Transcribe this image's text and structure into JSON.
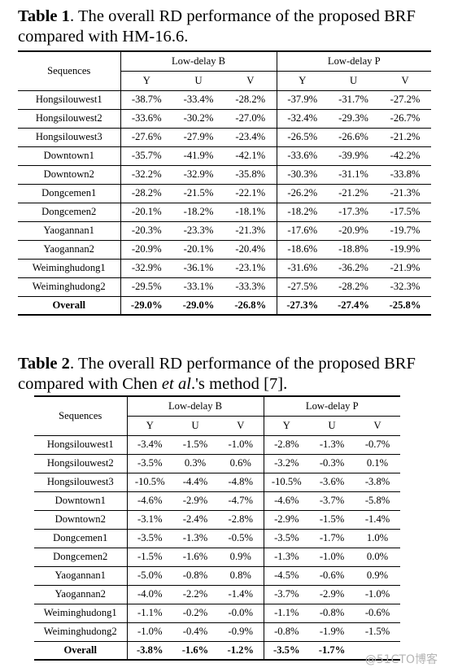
{
  "tables": [
    {
      "label": "Table 1",
      "caption_parts": [
        ". The overall RD performance of the proposed BRF compared with HM-16.6."
      ],
      "header": {
        "sequences": "Sequences",
        "group1": "Low-delay B",
        "group2": "Low-delay P",
        "sub": [
          "Y",
          "U",
          "V",
          "Y",
          "U",
          "V"
        ]
      },
      "rows": [
        {
          "name": "Hongsilouwest1",
          "values": [
            "-38.7%",
            "-33.4%",
            "-28.2%",
            "-37.9%",
            "-31.7%",
            "-27.2%"
          ]
        },
        {
          "name": "Hongsilouwest2",
          "values": [
            "-33.6%",
            "-30.2%",
            "-27.0%",
            "-32.4%",
            "-29.3%",
            "-26.7%"
          ]
        },
        {
          "name": "Hongsilouwest3",
          "values": [
            "-27.6%",
            "-27.9%",
            "-23.4%",
            "-26.5%",
            "-26.6%",
            "-21.2%"
          ]
        },
        {
          "name": "Downtown1",
          "values": [
            "-35.7%",
            "-41.9%",
            "-42.1%",
            "-33.6%",
            "-39.9%",
            "-42.2%"
          ]
        },
        {
          "name": "Downtown2",
          "values": [
            "-32.2%",
            "-32.9%",
            "-35.8%",
            "-30.3%",
            "-31.1%",
            "-33.8%"
          ]
        },
        {
          "name": "Dongcemen1",
          "values": [
            "-28.2%",
            "-21.5%",
            "-22.1%",
            "-26.2%",
            "-21.2%",
            "-21.3%"
          ]
        },
        {
          "name": "Dongcemen2",
          "values": [
            "-20.1%",
            "-18.2%",
            "-18.1%",
            "-18.2%",
            "-17.3%",
            "-17.5%"
          ]
        },
        {
          "name": "Yaogannan1",
          "values": [
            "-20.3%",
            "-23.3%",
            "-21.3%",
            "-17.6%",
            "-20.9%",
            "-19.7%"
          ]
        },
        {
          "name": "Yaogannan2",
          "values": [
            "-20.9%",
            "-20.1%",
            "-20.4%",
            "-18.6%",
            "-18.8%",
            "-19.9%"
          ]
        },
        {
          "name": "Weiminghudong1",
          "values": [
            "-32.9%",
            "-36.1%",
            "-23.1%",
            "-31.6%",
            "-36.2%",
            "-21.9%"
          ]
        },
        {
          "name": "Weiminghudong2",
          "values": [
            "-29.5%",
            "-33.1%",
            "-33.3%",
            "-27.5%",
            "-28.2%",
            "-32.3%"
          ]
        }
      ],
      "overall": {
        "name": "Overall",
        "values": [
          "-29.0%",
          "-29.0%",
          "-26.8%",
          "-27.3%",
          "-27.4%",
          "-25.8%"
        ]
      }
    },
    {
      "label": "Table 2",
      "caption_parts": [
        ". The overall RD performance of the proposed BRF compared with Chen ",
        "et al",
        ".'s method [7]."
      ],
      "header": {
        "sequences": "Sequences",
        "group1": "Low-delay B",
        "group2": "Low-delay P",
        "sub": [
          "Y",
          "U",
          "V",
          "Y",
          "U",
          "V"
        ]
      },
      "rows": [
        {
          "name": "Hongsilouwest1",
          "values": [
            "-3.4%",
            "-1.5%",
            "-1.0%",
            "-2.8%",
            "-1.3%",
            "-0.7%"
          ]
        },
        {
          "name": "Hongsilouwest2",
          "values": [
            "-3.5%",
            "0.3%",
            "0.6%",
            "-3.2%",
            "-0.3%",
            "0.1%"
          ]
        },
        {
          "name": "Hongsilouwest3",
          "values": [
            "-10.5%",
            "-4.4%",
            "-4.8%",
            "-10.5%",
            "-3.6%",
            "-3.8%"
          ]
        },
        {
          "name": "Downtown1",
          "values": [
            "-4.6%",
            "-2.9%",
            "-4.7%",
            "-4.6%",
            "-3.7%",
            "-5.8%"
          ]
        },
        {
          "name": "Downtown2",
          "values": [
            "-3.1%",
            "-2.4%",
            "-2.8%",
            "-2.9%",
            "-1.5%",
            "-1.4%"
          ]
        },
        {
          "name": "Dongcemen1",
          "values": [
            "-3.5%",
            "-1.3%",
            "-0.5%",
            "-3.5%",
            "-1.7%",
            "1.0%"
          ]
        },
        {
          "name": "Dongcemen2",
          "values": [
            "-1.5%",
            "-1.6%",
            "0.9%",
            "-1.3%",
            "-1.0%",
            "0.0%"
          ]
        },
        {
          "name": "Yaogannan1",
          "values": [
            "-5.0%",
            "-0.8%",
            "0.8%",
            "-4.5%",
            "-0.6%",
            "0.9%"
          ]
        },
        {
          "name": "Yaogannan2",
          "values": [
            "-4.0%",
            "-2.2%",
            "-1.4%",
            "-3.7%",
            "-2.9%",
            "-1.0%"
          ]
        },
        {
          "name": "Weiminghudong1",
          "values": [
            "-1.1%",
            "-0.2%",
            "-0.0%",
            "-1.1%",
            "-0.8%",
            "-0.6%"
          ]
        },
        {
          "name": "Weiminghudong2",
          "values": [
            "-1.0%",
            "-0.4%",
            "-0.9%",
            "-0.8%",
            "-1.9%",
            "-1.5%"
          ]
        }
      ],
      "overall": {
        "name": "Overall",
        "values": [
          "-3.8%",
          "-1.6%",
          "-1.2%",
          "-3.5%",
          "-1.7%",
          ""
        ]
      }
    }
  ],
  "watermark": "@51CTO博客"
}
